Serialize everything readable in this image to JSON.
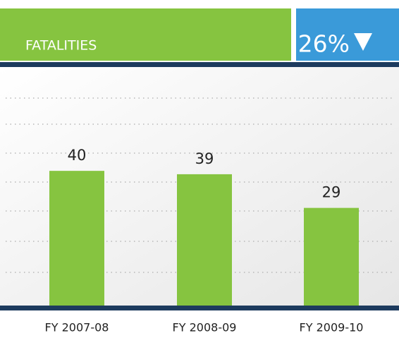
{
  "chart_data": {
    "type": "bar",
    "title": "FATALITIES",
    "badge": "26%",
    "categories": [
      "FY 2007-08",
      "FY 2008-09",
      "FY 2009-10"
    ],
    "values": [
      40,
      39,
      29
    ],
    "color": "#86c440",
    "ylim": [
      0,
      70
    ]
  }
}
